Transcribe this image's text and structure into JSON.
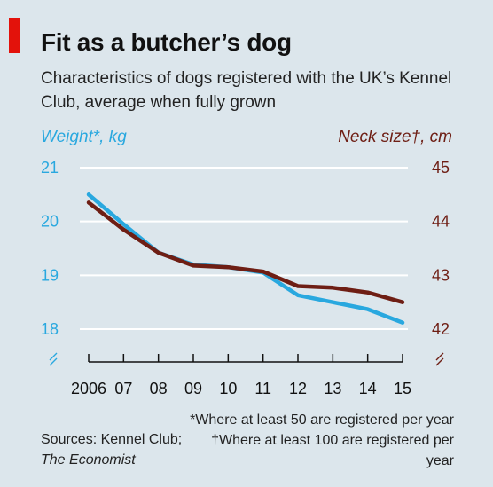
{
  "title": "Fit as a butcher’s dog",
  "subtitle": "Characteristics of dogs registered with the UK’s Kennel Club, average when fully grown",
  "sources_label": "Sources: Kennel Club;",
  "sources_pub": "The Economist",
  "footnote": "*Where at least 50 are registered per year †Where at least 100 are registered per year",
  "colors": {
    "weight": "#29a8df",
    "neck": "#6e1e14",
    "background": "#dce6ec",
    "accent": "#e3120b"
  },
  "chart_data": {
    "type": "line",
    "x": [
      "2006",
      "07",
      "08",
      "09",
      "10",
      "11",
      "12",
      "13",
      "14",
      "15"
    ],
    "left_axis": {
      "label": "Weight*, kg",
      "ylim": [
        18,
        21
      ],
      "ticks": [
        "21",
        "20",
        "19",
        "18"
      ],
      "tick_values": [
        21,
        20,
        19,
        18
      ]
    },
    "right_axis": {
      "label": "Neck size†, cm",
      "ylim": [
        42,
        45
      ],
      "ticks": [
        "45",
        "44",
        "43",
        "42"
      ],
      "tick_values": [
        45,
        44,
        43,
        42
      ]
    },
    "series": [
      {
        "name": "Weight*, kg",
        "axis": "left",
        "color": "#29a8df",
        "values": [
          20.5,
          19.95,
          19.42,
          19.2,
          19.15,
          19.05,
          18.63,
          18.5,
          18.37,
          18.12
        ]
      },
      {
        "name": "Neck size†, cm",
        "axis": "right",
        "color": "#6e1e14",
        "values": [
          44.35,
          43.85,
          43.42,
          43.18,
          43.15,
          43.07,
          42.8,
          42.77,
          42.68,
          42.5
        ]
      }
    ],
    "grid": true
  }
}
